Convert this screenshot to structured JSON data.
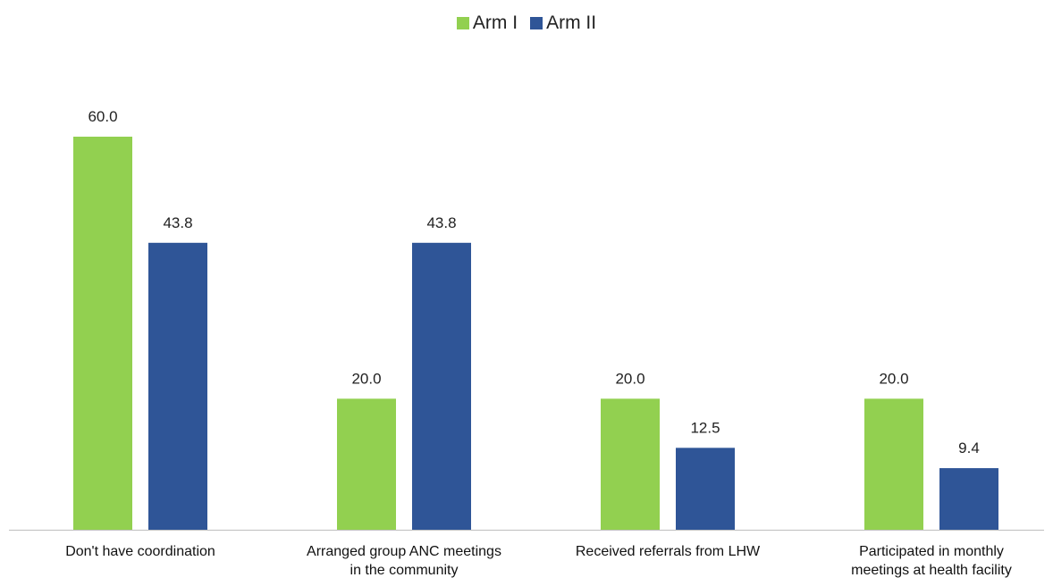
{
  "chart_data": {
    "type": "bar",
    "categories": [
      "Don't have coordination",
      "Arranged group ANC meetings in the community",
      "Received referrals from LHW",
      "Participated in monthly meetings at health facility"
    ],
    "category_lines": [
      [
        "Don't have coordination"
      ],
      [
        "Arranged group ANC meetings",
        "in the community"
      ],
      [
        "Received referrals from LHW"
      ],
      [
        "Participated in monthly",
        "meetings at health facility"
      ]
    ],
    "series": [
      {
        "name": "Arm I",
        "color": "#92d050",
        "values": [
          60.0,
          20.0,
          20.0,
          20.0
        ]
      },
      {
        "name": "Arm II",
        "color": "#2f5597",
        "values": [
          43.8,
          43.8,
          12.5,
          9.4
        ]
      }
    ],
    "ylim": [
      0,
      70
    ],
    "grid": false,
    "legend_position": "top-center",
    "data_labels": true,
    "title": "",
    "xlabel": "",
    "ylabel": ""
  }
}
